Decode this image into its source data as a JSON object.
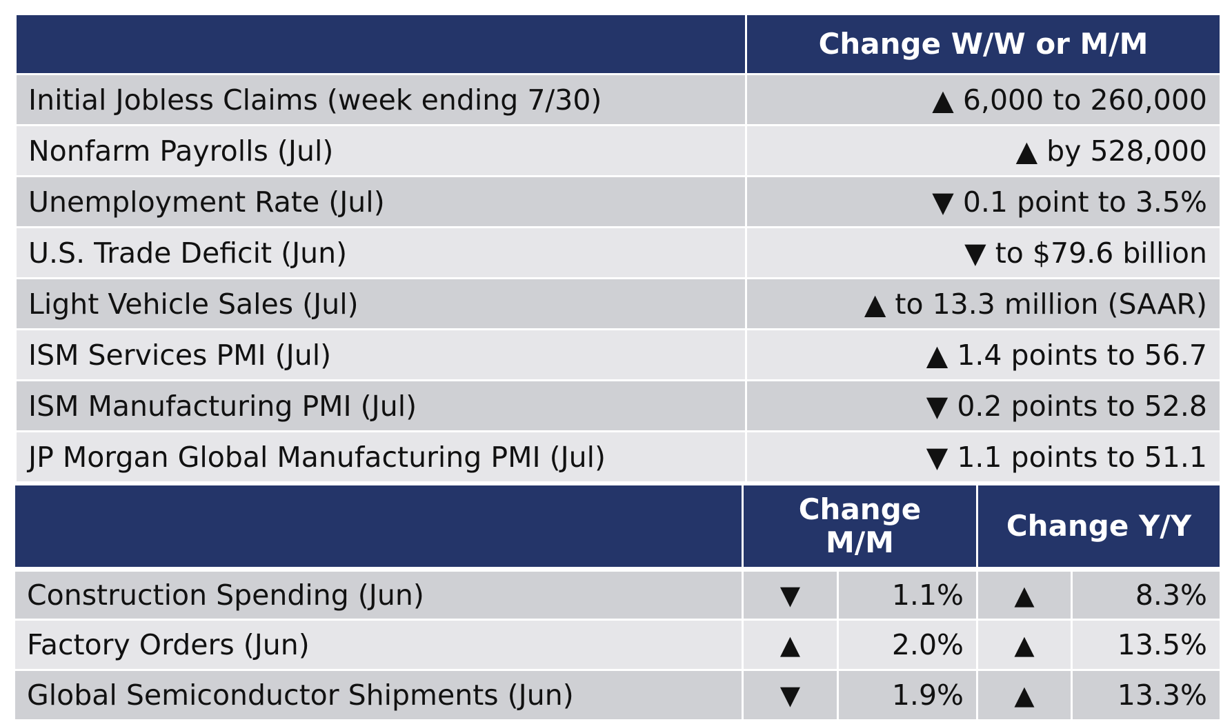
{
  "top_table": {
    "header": "Change W/W or M/M",
    "rows": [
      {
        "label": "Initial Jobless Claims (week ending 7/30)",
        "value": "▲ 6,000 to 260,000"
      },
      {
        "label": "Nonfarm Payrolls (Jul)",
        "value": "▲ by 528,000"
      },
      {
        "label": "Unemployment Rate (Jul)",
        "value": "▼ 0.1 point to 3.5%"
      },
      {
        "label": "U.S. Trade Deficit (Jun)",
        "value": "▼ to $79.6 billion"
      },
      {
        "label": "Light Vehicle Sales (Jul)",
        "value": "▲ to 13.3 million (SAAR)"
      },
      {
        "label": "ISM Services PMI (Jul)",
        "value": "▲ 1.4 points to 56.7"
      },
      {
        "label": "ISM Manufacturing PMI (Jul)",
        "value": "▼ 0.2 points to 52.8"
      },
      {
        "label": "JP Morgan Global Manufacturing PMI (Jul)",
        "value": "▼ 1.1 points to 51.1"
      }
    ]
  },
  "bottom_table": {
    "header_mm": "Change M/M",
    "header_yy": "Change Y/Y",
    "rows": [
      {
        "label": "Construction Spending (Jun)",
        "mm_arrow": "▼",
        "mm_value": "1.1%",
        "yy_arrow": "▲",
        "yy_value": "8.3%"
      },
      {
        "label": "Factory Orders (Jun)",
        "mm_arrow": "▲",
        "mm_value": "2.0%",
        "yy_arrow": "▲",
        "yy_value": "13.5%"
      },
      {
        "label": "Global Semiconductor Shipments (Jun)",
        "mm_arrow": "▼",
        "mm_value": "1.9%",
        "yy_arrow": "▲",
        "yy_value": "13.3%"
      }
    ]
  },
  "colors": {
    "header_bg": "#243569",
    "row_dark": "#cfd0d4",
    "row_light": "#e6e6e9"
  }
}
